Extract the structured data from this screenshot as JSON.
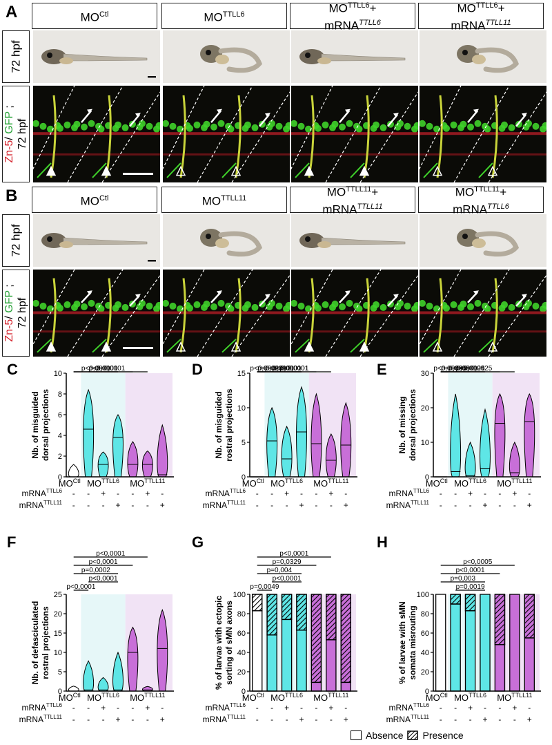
{
  "panels": {
    "A": {
      "label": "A",
      "columns": [
        {
          "name": "MO",
          "sup": "Ctl",
          "name2": "",
          "sup2": ""
        },
        {
          "name": "MO",
          "sup": "TTLL6",
          "name2": "",
          "sup2": ""
        },
        {
          "name": "MO",
          "sup": "TTLL6",
          "plus": "+",
          "name2": "mRNA",
          "sup2": "TTLL6"
        },
        {
          "name": "MO",
          "sup": "TTLL6",
          "plus": "+",
          "name2": "mRNA",
          "sup2": "TTLL11"
        }
      ],
      "row1": "72 hpf",
      "row2": {
        "zn": "Zn-5",
        "slash": "/ ",
        "gfp": "GFP",
        "semi": " ;",
        "time": "72 hpf"
      }
    },
    "B": {
      "label": "B",
      "columns": [
        {
          "name": "MO",
          "sup": "Ctl",
          "name2": "",
          "sup2": ""
        },
        {
          "name": "MO",
          "sup": "TTLL11",
          "name2": "",
          "sup2": ""
        },
        {
          "name": "MO",
          "sup": "TTLL11",
          "plus": "+",
          "name2": "mRNA",
          "sup2": "TTLL11"
        },
        {
          "name": "MO",
          "sup": "TTLL11",
          "plus": "+",
          "name2": "mRNA",
          "sup2": "TTLL6"
        }
      ],
      "row1": "72 hpf",
      "row2": {
        "zn": "Zn-5",
        "slash": "/ ",
        "gfp": "GFP",
        "semi": " ;",
        "time": "72 hpf"
      }
    }
  },
  "colors": {
    "cyan": "#5ee6e6",
    "magenta": "#c86fd8",
    "cyan_bg": "#e6f7f8",
    "magenta_bg": "#f1e3f5",
    "red": "#d4202a",
    "green": "#2aa33a"
  },
  "charts": {
    "C": {
      "label": "C",
      "ylabel": [
        "Nb. of misguided",
        "dorsal projections"
      ],
      "yticks": [
        "0",
        "2",
        "4",
        "6",
        "8",
        "10"
      ],
      "pvals": [
        "p<0,0001",
        "p<0,0001",
        "p<0,0001",
        "p<0,0001"
      ]
    },
    "D": {
      "label": "D",
      "ylabel": [
        "Nb. of misguided",
        "rostral projections"
      ],
      "yticks": [
        "0",
        "5",
        "10",
        "15"
      ],
      "pvals": [
        "p<0,0001",
        "p<0,0001",
        "p<0,0001",
        "p<0,0001",
        "p<0,0001",
        "p=0,0201",
        "p<0,0001"
      ]
    },
    "E": {
      "label": "E",
      "ylabel": [
        "Nb. of missing",
        "dorsal projections"
      ],
      "yticks": [
        "0",
        "10",
        "20",
        "30"
      ],
      "pvals": [
        "p=0,0025",
        "p=0,0025",
        "p<0,0001",
        "p<0,0001",
        "p<0,0063",
        "p=0,0058"
      ]
    },
    "F": {
      "label": "F",
      "ylabel": [
        "Nb. of defasciculated",
        "rostral projections"
      ],
      "yticks": [
        "0",
        "5",
        "10",
        "15",
        "20",
        "25"
      ],
      "pvals": [
        "p<0,0001",
        "p<0,0001",
        "p=0,0002",
        "p<0,0001",
        "p<0,0001"
      ]
    },
    "G": {
      "label": "G",
      "ylabel": [
        "% of larvae with ectopic",
        "sorting of sMN axons"
      ],
      "yticks": [
        "0",
        "20",
        "40",
        "60",
        "80",
        "100"
      ],
      "pvals": [
        "p<0,0001",
        "p=0,0329",
        "p=0,004",
        "p<0,0001",
        "p=0,0049"
      ]
    },
    "H": {
      "label": "H",
      "ylabel": [
        "% of larvae with sMN",
        "somata misrouting"
      ],
      "yticks": [
        "0",
        "20",
        "40",
        "60",
        "80",
        "100"
      ],
      "pvals": [
        "p<0,0005",
        "p<0,0001",
        "p=0,003",
        "p=0,0019"
      ]
    }
  },
  "axis": {
    "mo_ctl": "MO",
    "mo_ctl_sup": "Ctl",
    "mo6": "MO",
    "mo6_sup": "TTLL6",
    "mo11": "MO",
    "mo11_sup": "TTLL11",
    "mrna6": "mRNA",
    "mrna6_sup": "TTLL6",
    "mrna11": "mRNA",
    "mrna11_sup": "TTLL11",
    "row6": [
      "-",
      "-",
      "+",
      "-",
      "-",
      "+",
      "-"
    ],
    "row11": [
      "-",
      "-",
      "-",
      "+",
      "-",
      "-",
      "+"
    ]
  },
  "legend": {
    "absence": "Absence",
    "presence": "Presence"
  },
  "chart_data": [
    {
      "type": "violin",
      "panel": "C",
      "categories": [
        "MOCtl",
        "MOTTLL6",
        "MOTTLL6+mRNA6",
        "MOTTLL6+mRNA11",
        "MOTTLL11",
        "MOTTLL11+mRNA6",
        "MOTTLL11+mRNA11"
      ],
      "medians": [
        0,
        4.6,
        1.2,
        3.8,
        1.2,
        1.2,
        0.2
      ],
      "maxima": [
        1.2,
        8.4,
        2.4,
        6,
        3.4,
        2.5,
        5
      ],
      "ylim": [
        0,
        10
      ]
    },
    {
      "type": "violin",
      "panel": "D",
      "categories": [
        "MOCtl",
        "MOTTLL6",
        "MOTTLL6+mRNA6",
        "MOTTLL6+mRNA11",
        "MOTTLL11",
        "MOTTLL11+mRNA6",
        "MOTTLL11+mRNA11"
      ],
      "medians": [
        0,
        5.2,
        2.6,
        6.5,
        4.8,
        2.4,
        4.6
      ],
      "maxima": [
        0,
        10,
        7.3,
        13,
        12,
        6.2,
        10.7
      ],
      "ylim": [
        0,
        15
      ]
    },
    {
      "type": "violin",
      "panel": "E",
      "categories": [
        "MOCtl",
        "MOTTLL6",
        "MOTTLL6+mRNA6",
        "MOTTLL6+mRNA11",
        "MOTTLL11",
        "MOTTLL11+mRNA6",
        "MOTTLL11+mRNA11"
      ],
      "medians": [
        0,
        1.5,
        0.3,
        2.5,
        15.5,
        1.2,
        16
      ],
      "maxima": [
        0,
        24,
        10,
        19.5,
        24,
        10,
        24
      ],
      "ylim": [
        0,
        30
      ]
    },
    {
      "type": "violin",
      "panel": "F",
      "categories": [
        "MOCtl",
        "MOTTLL6",
        "MOTTLL6+mRNA6",
        "MOTTLL6+mRNA11",
        "MOTTLL11",
        "MOTTLL11+mRNA6",
        "MOTTLL11+mRNA11"
      ],
      "medians": [
        0,
        0.3,
        0.3,
        0.3,
        10,
        0.3,
        11
      ],
      "maxima": [
        1.3,
        7.8,
        3.5,
        10,
        16.5,
        1.2,
        21
      ],
      "ylim": [
        0,
        25
      ]
    },
    {
      "type": "bar",
      "stacked": true,
      "panel": "G",
      "categories": [
        "MOCtl",
        "MOTTLL6",
        "MOTTLL6+mRNA6",
        "MOTTLL6+mRNA11",
        "MOTTLL11",
        "MOTTLL11+mRNA6",
        "MOTTLL11+mRNA11"
      ],
      "series": [
        {
          "name": "Absence",
          "values": [
            83,
            58,
            74,
            63,
            9,
            53,
            9
          ]
        },
        {
          "name": "Presence",
          "values": [
            17,
            42,
            26,
            37,
            91,
            47,
            91
          ]
        }
      ],
      "ylim": [
        0,
        100
      ]
    },
    {
      "type": "bar",
      "stacked": true,
      "panel": "H",
      "categories": [
        "MOCtl",
        "MOTTLL6",
        "MOTTLL6+mRNA6",
        "MOTTLL6+mRNA11",
        "MOTTLL11",
        "MOTTLL11+mRNA6",
        "MOTTLL11+mRNA11"
      ],
      "series": [
        {
          "name": "Absence",
          "values": [
            100,
            90,
            83,
            100,
            48,
            100,
            55
          ]
        },
        {
          "name": "Presence",
          "values": [
            0,
            10,
            17,
            0,
            52,
            0,
            45
          ]
        }
      ],
      "ylim": [
        0,
        100
      ]
    }
  ]
}
